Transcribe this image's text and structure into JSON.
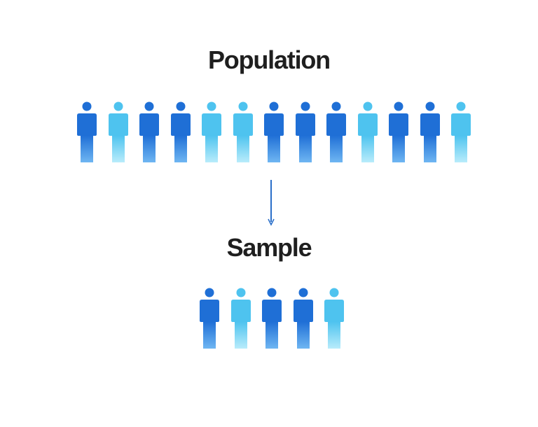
{
  "population": {
    "title": "Population",
    "people": [
      "dark",
      "light",
      "dark",
      "dark",
      "light",
      "light",
      "dark",
      "dark",
      "dark",
      "light",
      "dark",
      "dark",
      "light"
    ]
  },
  "sample": {
    "title": "Sample",
    "people": [
      "dark",
      "light",
      "dark",
      "dark",
      "light"
    ]
  },
  "colors": {
    "dark_top": "#1f6fd6",
    "dark_bottom": "#6fb6f2",
    "light_top": "#4ec3ef",
    "light_bottom": "#b9ecfb",
    "arrow": "#2a6fc9",
    "text": "#1f1f1f"
  },
  "icons": {
    "person": "person-icon",
    "arrow": "arrow-down-icon"
  }
}
